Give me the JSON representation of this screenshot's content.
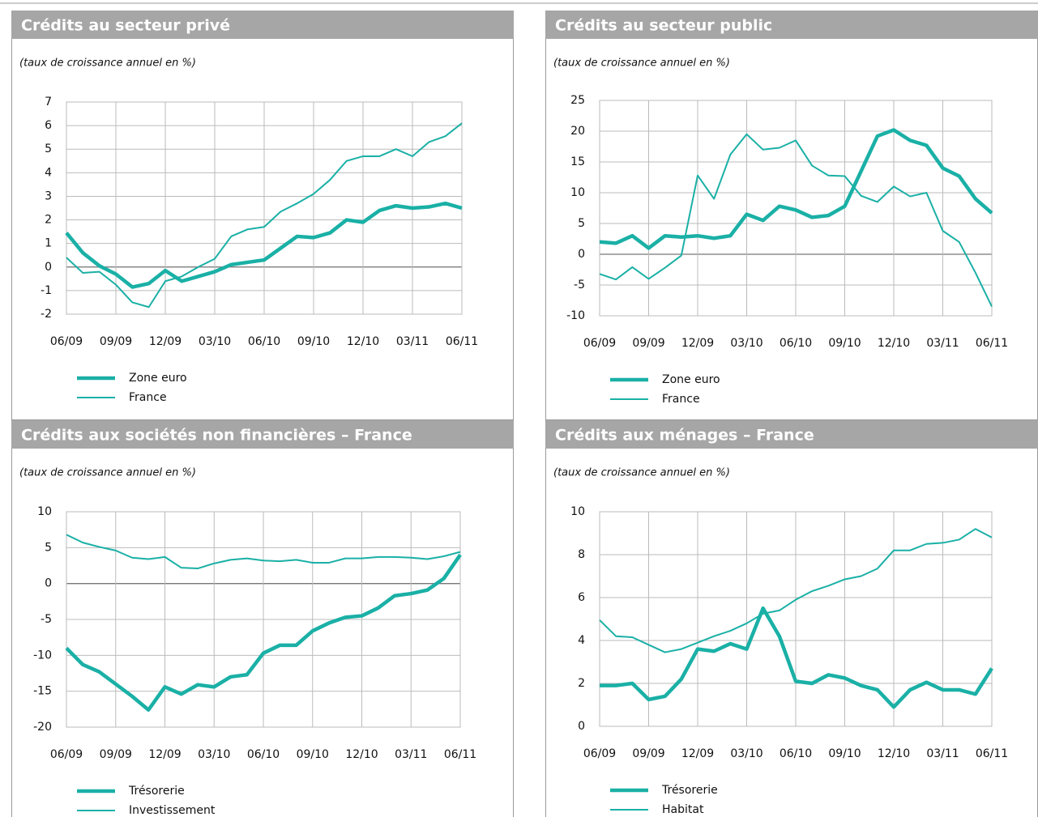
{
  "chart_data": [
    {
      "type": "line",
      "title": "Crédits au secteur privé",
      "subtitle": "(taux de croissance annuel en %)",
      "categories": [
        "06/09",
        null,
        null,
        "09/09",
        null,
        null,
        "12/09",
        null,
        null,
        "03/10",
        null,
        null,
        "06/10",
        null,
        null,
        "09/10",
        null,
        null,
        "12/10",
        null,
        null,
        "03/11",
        null,
        null,
        "06/11"
      ],
      "series": [
        {
          "name": "Zone euro",
          "color": "#1ab0a6",
          "values": [
            1.45,
            0.6,
            0.05,
            -0.3,
            -0.85,
            -0.7,
            -0.15,
            -0.6,
            -0.4,
            -0.2,
            0.1,
            0.2,
            0.3,
            0.8,
            1.3,
            1.25,
            1.45,
            2.0,
            1.9,
            2.4,
            2.6,
            2.5,
            2.55,
            2.7,
            2.5
          ]
        },
        {
          "name": "France",
          "color": "#1ab0a6",
          "values": [
            0.4,
            -0.25,
            -0.2,
            -0.75,
            -1.5,
            -1.7,
            -0.6,
            -0.4,
            0.0,
            0.35,
            1.3,
            1.6,
            1.7,
            2.35,
            2.7,
            3.1,
            3.7,
            4.5,
            4.7,
            4.7,
            5.0,
            4.7,
            5.3,
            5.55,
            6.1
          ]
        }
      ],
      "ylim": [
        -2,
        7
      ],
      "yticks": [
        -2,
        -1,
        0,
        1,
        2,
        3,
        4,
        5,
        6,
        7
      ],
      "grid": true
    },
    {
      "type": "line",
      "title": "Crédits au secteur public",
      "subtitle": "(taux de croissance annuel en %)",
      "categories": [
        "06/09",
        null,
        null,
        "09/09",
        null,
        null,
        "12/09",
        null,
        null,
        "03/10",
        null,
        null,
        "06/10",
        null,
        null,
        "09/10",
        null,
        null,
        "12/10",
        null,
        null,
        "03/11",
        null,
        null,
        "06/11"
      ],
      "series": [
        {
          "name": "Zone euro",
          "color": "#1ab0a6",
          "values": [
            2,
            1.8,
            3,
            1,
            3,
            2.8,
            3,
            2.6,
            3,
            6.5,
            5.5,
            7.8,
            7.2,
            6,
            6.3,
            7.8,
            13.5,
            19.2,
            20.2,
            18.5,
            17.7,
            14,
            12.7,
            9,
            6.7
          ]
        },
        {
          "name": "France",
          "color": "#1ab0a6",
          "values": [
            -3.2,
            -4.1,
            -2.1,
            -4,
            -2.2,
            -0.2,
            12.8,
            9,
            16.2,
            19.5,
            17,
            17.3,
            18.5,
            14.4,
            12.8,
            12.7,
            9.5,
            8.5,
            11,
            9.4,
            10,
            3.8,
            2,
            -3,
            -8.5
          ]
        }
      ],
      "ylim": [
        -10,
        25
      ],
      "yticks": [
        -10,
        -5,
        0,
        5,
        10,
        15,
        20,
        25
      ],
      "grid": true
    },
    {
      "type": "line",
      "title": "Crédits aux sociétés non financières – France",
      "subtitle": "(taux de croissance annuel en %)",
      "categories": [
        "06/09",
        null,
        null,
        "09/09",
        null,
        null,
        "12/09",
        null,
        null,
        "03/10",
        null,
        null,
        "06/10",
        null,
        null,
        "09/10",
        null,
        null,
        "12/10",
        null,
        null,
        "03/11",
        null,
        null,
        "06/11"
      ],
      "series": [
        {
          "name": "Trésorerie",
          "color": "#1ab0a6",
          "values": [
            -9,
            -11.3,
            -12.3,
            -14,
            -15.7,
            -17.6,
            -14.4,
            -15.4,
            -14.1,
            -14.4,
            -13,
            -12.7,
            -9.7,
            -8.6,
            -8.6,
            -6.6,
            -5.5,
            -4.7,
            -4.5,
            -3.4,
            -1.7,
            -1.4,
            -0.9,
            0.7,
            4.0
          ]
        },
        {
          "name": "Investissement",
          "color": "#1ab0a6",
          "values": [
            6.8,
            5.7,
            5.1,
            4.6,
            3.6,
            3.4,
            3.7,
            2.2,
            2.1,
            2.8,
            3.3,
            3.5,
            3.2,
            3.1,
            3.3,
            2.9,
            2.9,
            3.5,
            3.5,
            3.7,
            3.7,
            3.6,
            3.4,
            3.8,
            4.4
          ]
        }
      ],
      "ylim": [
        -20,
        10
      ],
      "yticks": [
        -20,
        -15,
        -10,
        -5,
        0,
        5,
        10
      ],
      "grid": true
    },
    {
      "type": "line",
      "title": "Crédits aux ménages – France",
      "subtitle": "(taux de croissance annuel en %)",
      "categories": [
        "06/09",
        null,
        null,
        "09/09",
        null,
        null,
        "12/09",
        null,
        null,
        "03/10",
        null,
        null,
        "06/10",
        null,
        null,
        "09/10",
        null,
        null,
        "12/10",
        null,
        null,
        "03/11",
        null,
        null,
        "06/11"
      ],
      "series": [
        {
          "name": "Trésorerie",
          "color": "#1ab0a6",
          "values": [
            1.9,
            1.9,
            2.0,
            1.25,
            1.4,
            2.2,
            3.6,
            3.5,
            3.85,
            3.6,
            5.5,
            4.2,
            2.1,
            2.0,
            2.4,
            2.25,
            1.9,
            1.7,
            0.9,
            1.7,
            2.05,
            1.7,
            1.7,
            1.5,
            2.7
          ]
        },
        {
          "name": "Habitat",
          "color": "#1ab0a6",
          "values": [
            4.95,
            4.2,
            4.15,
            3.8,
            3.45,
            3.6,
            3.9,
            4.2,
            4.45,
            4.8,
            5.25,
            5.4,
            5.9,
            6.3,
            6.55,
            6.85,
            7.0,
            7.35,
            8.2,
            8.2,
            8.5,
            8.55,
            8.7,
            9.2,
            8.8
          ]
        }
      ],
      "ylim": [
        0,
        10
      ],
      "yticks": [
        0,
        2,
        4,
        6,
        8,
        10
      ],
      "grid": true
    }
  ]
}
